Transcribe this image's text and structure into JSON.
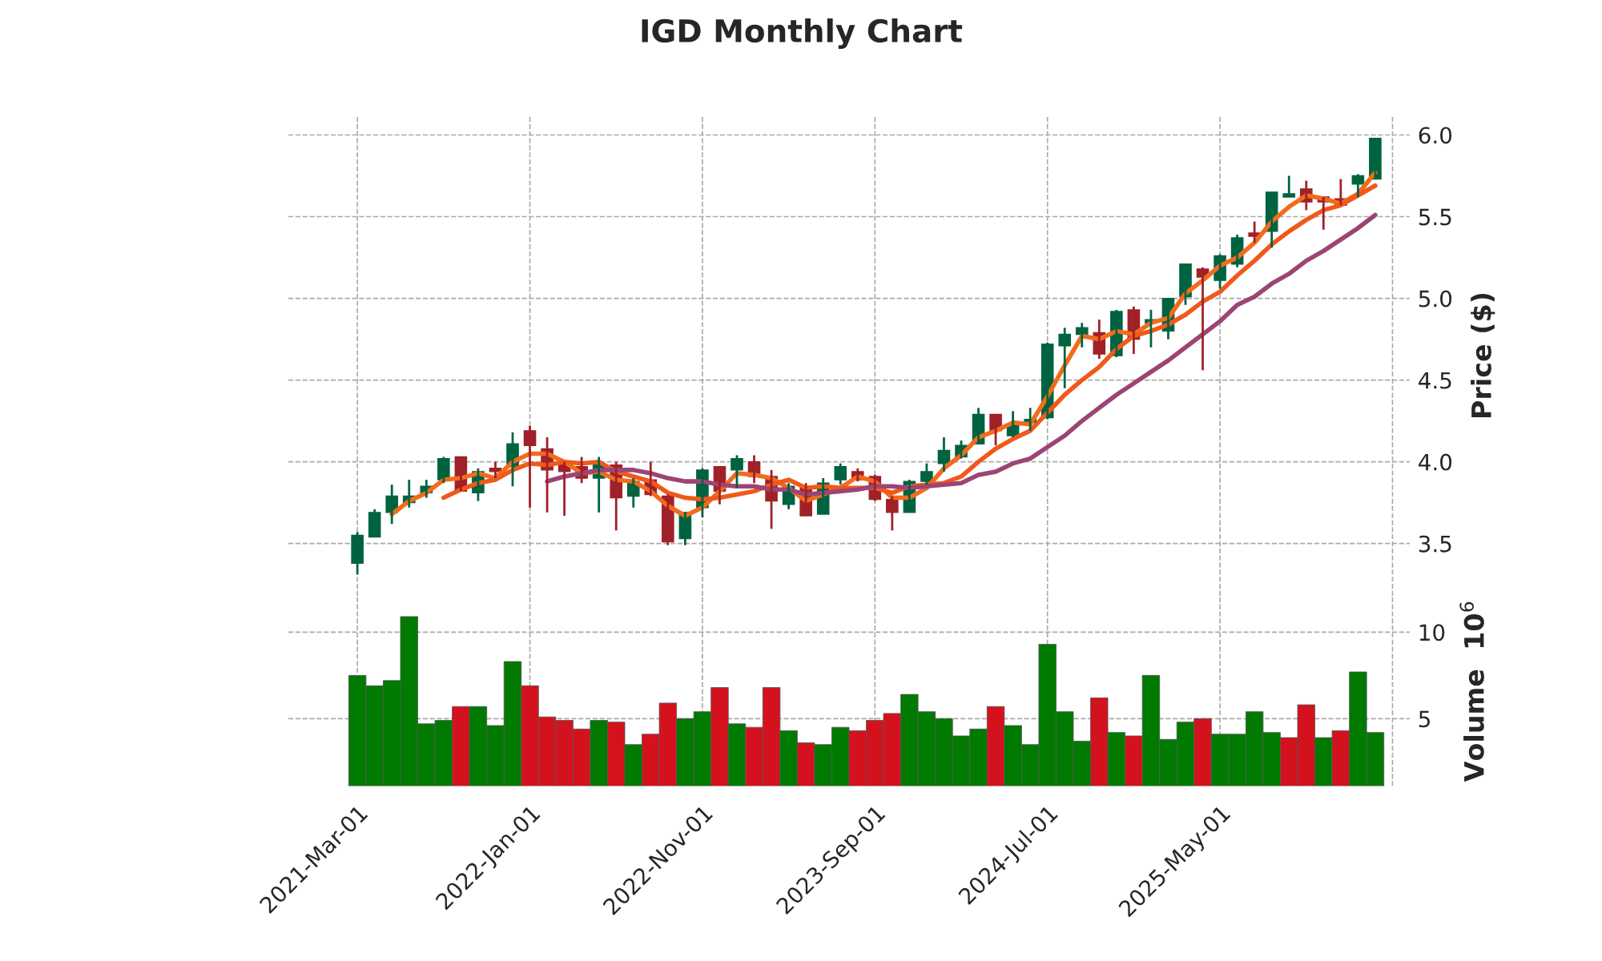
{
  "chart_data": [
    {
      "type": "candlestick",
      "title": "IGD Monthly Chart",
      "ylabel": "Price ($)",
      "x": [
        "2021-03",
        "2021-04",
        "2021-05",
        "2021-06",
        "2021-07",
        "2021-08",
        "2021-09",
        "2021-10",
        "2021-11",
        "2021-12",
        "2022-01",
        "2022-02",
        "2022-03",
        "2022-04",
        "2022-05",
        "2022-06",
        "2022-07",
        "2022-08",
        "2022-09",
        "2022-10",
        "2022-11",
        "2022-12",
        "2023-01",
        "2023-02",
        "2023-03",
        "2023-04",
        "2023-05",
        "2023-06",
        "2023-07",
        "2023-08",
        "2023-09",
        "2023-10",
        "2023-11",
        "2023-12",
        "2024-01",
        "2024-02",
        "2024-03",
        "2024-04",
        "2024-05",
        "2024-06",
        "2024-07",
        "2024-08",
        "2024-09",
        "2024-10",
        "2024-11",
        "2024-12",
        "2025-01",
        "2025-02",
        "2025-03",
        "2025-04",
        "2025-05",
        "2025-06",
        "2025-07",
        "2025-08",
        "2025-09",
        "2025-10",
        "2025-11",
        "2025-12",
        "2026-01",
        "2026-02"
      ],
      "ohlc": [
        [
          3.38,
          3.57,
          3.31,
          3.55
        ],
        [
          3.54,
          3.71,
          3.54,
          3.69
        ],
        [
          3.69,
          3.86,
          3.62,
          3.79
        ],
        [
          3.75,
          3.89,
          3.72,
          3.79
        ],
        [
          3.81,
          3.89,
          3.78,
          3.85
        ],
        [
          3.89,
          4.03,
          3.87,
          4.02
        ],
        [
          4.03,
          4.03,
          3.82,
          3.82
        ],
        [
          3.81,
          3.96,
          3.76,
          3.94
        ],
        [
          3.96,
          4.0,
          3.9,
          3.94
        ],
        [
          3.97,
          4.18,
          3.85,
          4.11
        ],
        [
          4.19,
          4.22,
          3.72,
          4.1
        ],
        [
          4.08,
          4.15,
          3.69,
          3.95
        ],
        [
          3.98,
          4.0,
          3.67,
          3.94
        ],
        [
          3.97,
          4.03,
          3.87,
          3.9
        ],
        [
          3.9,
          4.03,
          3.69,
          3.98
        ],
        [
          3.98,
          4.0,
          3.58,
          3.78
        ],
        [
          3.79,
          3.9,
          3.72,
          3.88
        ],
        [
          3.89,
          4.0,
          3.79,
          3.8
        ],
        [
          3.79,
          3.8,
          3.49,
          3.51
        ],
        [
          3.53,
          3.69,
          3.49,
          3.69
        ],
        [
          3.72,
          3.96,
          3.66,
          3.95
        ],
        [
          3.97,
          3.97,
          3.74,
          3.82
        ],
        [
          3.95,
          4.04,
          3.84,
          4.02
        ],
        [
          4.0,
          4.04,
          3.87,
          3.91
        ],
        [
          3.91,
          3.95,
          3.59,
          3.76
        ],
        [
          3.74,
          3.87,
          3.71,
          3.85
        ],
        [
          3.85,
          3.87,
          3.67,
          3.67
        ],
        [
          3.68,
          3.9,
          3.68,
          3.87
        ],
        [
          3.89,
          3.99,
          3.86,
          3.97
        ],
        [
          3.94,
          3.96,
          3.88,
          3.89
        ],
        [
          3.91,
          3.92,
          3.76,
          3.77
        ],
        [
          3.77,
          3.79,
          3.58,
          3.69
        ],
        [
          3.69,
          3.89,
          3.69,
          3.88
        ],
        [
          3.88,
          3.99,
          3.86,
          3.94
        ],
        [
          3.99,
          4.15,
          3.94,
          4.07
        ],
        [
          4.03,
          4.13,
          4.02,
          4.1
        ],
        [
          4.11,
          4.33,
          4.11,
          4.29
        ],
        [
          4.29,
          4.29,
          4.1,
          4.19
        ],
        [
          4.16,
          4.31,
          4.15,
          4.23
        ],
        [
          4.24,
          4.33,
          4.19,
          4.26
        ],
        [
          4.27,
          4.73,
          4.26,
          4.72
        ],
        [
          4.71,
          4.82,
          4.45,
          4.78
        ],
        [
          4.78,
          4.85,
          4.7,
          4.82
        ],
        [
          4.79,
          4.87,
          4.63,
          4.66
        ],
        [
          4.65,
          4.93,
          4.64,
          4.92
        ],
        [
          4.93,
          4.95,
          4.66,
          4.75
        ],
        [
          4.85,
          4.93,
          4.7,
          4.87
        ],
        [
          4.8,
          5.0,
          4.75,
          5.0
        ],
        [
          5.01,
          5.21,
          4.96,
          5.21
        ],
        [
          5.18,
          5.19,
          4.56,
          5.13
        ],
        [
          5.11,
          5.27,
          5.06,
          5.26
        ],
        [
          5.21,
          5.39,
          5.19,
          5.37
        ],
        [
          5.4,
          5.47,
          5.34,
          5.38
        ],
        [
          5.41,
          5.65,
          5.31,
          5.65
        ],
        [
          5.62,
          5.75,
          5.62,
          5.64
        ],
        [
          5.67,
          5.72,
          5.54,
          5.59
        ],
        [
          5.62,
          5.62,
          5.42,
          5.59
        ],
        [
          5.61,
          5.73,
          5.57,
          5.57
        ],
        [
          5.7,
          5.76,
          5.62,
          5.75
        ],
        [
          5.73,
          5.98,
          5.73,
          5.98
        ]
      ],
      "colors": [
        "#006340",
        "#006340",
        "#006340",
        "#006340",
        "#006340",
        "#006340",
        "#a02128",
        "#006340",
        "#a02128",
        "#006340",
        "#a02128",
        "#a02128",
        "#a02128",
        "#a02128",
        "#006340",
        "#a02128",
        "#006340",
        "#a02128",
        "#a02128",
        "#006340",
        "#006340",
        "#a02128",
        "#006340",
        "#a02128",
        "#a02128",
        "#006340",
        "#a02128",
        "#006340",
        "#006340",
        "#a02128",
        "#a02128",
        "#a02128",
        "#006340",
        "#006340",
        "#006340",
        "#006340",
        "#006340",
        "#a02128",
        "#006340",
        "#006340",
        "#006340",
        "#006340",
        "#006340",
        "#a02128",
        "#006340",
        "#a02128",
        "#006340",
        "#006340",
        "#006340",
        "#a02128",
        "#006340",
        "#006340",
        "#a02128",
        "#006340",
        "#006340",
        "#a02128",
        "#a02128",
        "#a02128",
        "#006340",
        "#006340"
      ],
      "series": [
        {
          "type": "line",
          "color": "#f26b1d",
          "x": [
            "2021-05",
            "2021-06",
            "2021-07",
            "2021-08",
            "2021-09",
            "2021-10",
            "2021-11",
            "2021-12",
            "2022-01",
            "2022-02",
            "2022-03",
            "2022-04",
            "2022-05",
            "2022-06",
            "2022-07",
            "2022-08",
            "2022-09",
            "2022-10",
            "2022-11",
            "2022-12",
            "2023-01",
            "2023-02",
            "2023-03",
            "2023-04",
            "2023-05",
            "2023-06",
            "2023-07",
            "2023-08",
            "2023-09",
            "2023-10",
            "2023-11",
            "2023-12",
            "2024-01",
            "2024-02",
            "2024-03",
            "2024-04",
            "2024-05",
            "2024-06",
            "2024-07",
            "2024-08",
            "2024-09",
            "2024-10",
            "2024-11",
            "2024-12",
            "2025-01",
            "2025-02",
            "2025-03",
            "2025-04",
            "2025-05",
            "2025-06",
            "2025-07",
            "2025-08",
            "2025-09",
            "2025-10",
            "2025-11",
            "2025-12",
            "2026-01",
            "2026-02"
          ],
          "values": [
            3.68,
            3.76,
            3.81,
            3.89,
            3.9,
            3.93,
            3.9,
            4.0,
            4.05,
            4.05,
            4.0,
            3.93,
            3.94,
            3.89,
            3.88,
            3.82,
            3.73,
            3.67,
            3.72,
            3.82,
            3.93,
            3.92,
            3.9,
            3.84,
            3.76,
            3.8,
            3.84,
            3.91,
            3.88,
            3.78,
            3.78,
            3.84,
            3.96,
            4.04,
            4.15,
            4.19,
            4.24,
            4.23,
            4.4,
            4.59,
            4.77,
            4.75,
            4.8,
            4.78,
            4.85,
            4.88,
            5.03,
            5.11,
            5.2,
            5.25,
            5.34,
            5.47,
            5.56,
            5.63,
            5.61,
            5.58,
            5.64,
            5.77
          ]
        },
        {
          "type": "line",
          "color": "#f0591a",
          "x": [
            "2021-08",
            "2021-09",
            "2021-10",
            "2021-11",
            "2021-12",
            "2022-01",
            "2022-02",
            "2022-03",
            "2022-04",
            "2022-05",
            "2022-06",
            "2022-07",
            "2022-08",
            "2022-09",
            "2022-10",
            "2022-11",
            "2022-12",
            "2023-01",
            "2023-02",
            "2023-03",
            "2023-04",
            "2023-05",
            "2023-06",
            "2023-07",
            "2023-08",
            "2023-09",
            "2023-10",
            "2023-11",
            "2023-12",
            "2024-01",
            "2024-02",
            "2024-03",
            "2024-04",
            "2024-05",
            "2024-06",
            "2024-07",
            "2024-08",
            "2024-09",
            "2024-10",
            "2024-11",
            "2024-12",
            "2025-01",
            "2025-02",
            "2025-03",
            "2025-04",
            "2025-05",
            "2025-06",
            "2025-07",
            "2025-08",
            "2025-09",
            "2025-10",
            "2025-11",
            "2025-12",
            "2026-01",
            "2026-02"
          ],
          "values": [
            3.78,
            3.83,
            3.87,
            3.89,
            3.95,
            3.99,
            3.98,
            4.0,
            3.99,
            4.0,
            3.94,
            3.91,
            3.88,
            3.81,
            3.78,
            3.77,
            3.78,
            3.8,
            3.82,
            3.86,
            3.89,
            3.84,
            3.85,
            3.84,
            3.84,
            3.84,
            3.81,
            3.85,
            3.86,
            3.87,
            3.91,
            4.0,
            4.08,
            4.14,
            4.19,
            4.3,
            4.41,
            4.5,
            4.58,
            4.69,
            4.77,
            4.8,
            4.84,
            4.9,
            4.98,
            5.04,
            5.14,
            5.23,
            5.33,
            5.41,
            5.48,
            5.54,
            5.57,
            5.63,
            5.69
          ]
        },
        {
          "type": "line",
          "color": "#9c4575",
          "x": [
            "2022-02",
            "2022-03",
            "2022-04",
            "2022-05",
            "2022-06",
            "2022-07",
            "2022-08",
            "2022-09",
            "2022-10",
            "2022-11",
            "2022-12",
            "2023-01",
            "2023-02",
            "2023-03",
            "2023-04",
            "2023-05",
            "2023-06",
            "2023-07",
            "2023-08",
            "2023-09",
            "2023-10",
            "2023-11",
            "2023-12",
            "2024-01",
            "2024-02",
            "2024-03",
            "2024-04",
            "2024-05",
            "2024-06",
            "2024-07",
            "2024-08",
            "2024-09",
            "2024-10",
            "2024-11",
            "2024-12",
            "2025-01",
            "2025-02",
            "2025-03",
            "2025-04",
            "2025-05",
            "2025-06",
            "2025-07",
            "2025-08",
            "2025-09",
            "2025-10",
            "2025-11",
            "2025-12",
            "2026-01",
            "2026-02"
          ],
          "values": [
            3.88,
            3.91,
            3.93,
            3.95,
            3.95,
            3.95,
            3.93,
            3.9,
            3.88,
            3.88,
            3.86,
            3.85,
            3.85,
            3.83,
            3.83,
            3.8,
            3.81,
            3.82,
            3.83,
            3.85,
            3.85,
            3.84,
            3.85,
            3.86,
            3.87,
            3.92,
            3.94,
            3.99,
            4.02,
            4.09,
            4.16,
            4.25,
            4.33,
            4.41,
            4.48,
            4.55,
            4.62,
            4.7,
            4.78,
            4.86,
            4.96,
            5.01,
            5.09,
            5.15,
            5.23,
            5.29,
            5.36,
            5.43,
            5.51
          ]
        }
      ],
      "xlim": [
        "2020-11",
        "2026-04"
      ],
      "xticks": [
        {
          "value": "2021-03",
          "label": null
        },
        {
          "value": "2022-01",
          "label": null
        },
        {
          "value": "2022-11",
          "label": null
        },
        {
          "value": "2023-09",
          "label": null
        },
        {
          "value": "2024-07",
          "label": null
        },
        {
          "value": "2025-05",
          "label": null
        },
        {
          "value": "2026-03",
          "label": null
        }
      ],
      "ylim": [
        3.18,
        6.12
      ],
      "yticks": [
        3.5,
        {
          "value": 4,
          "label": "4.0"
        },
        4.5,
        {
          "value": 5,
          "label": "5.0"
        },
        5.5,
        {
          "value": 6,
          "label": "6.0"
        }
      ],
      "grid": true,
      "tick_labels": "y"
    },
    {
      "type": "bar",
      "ylabel": "Volume  10$^{6}$",
      "x": [
        "2021-03",
        "2021-04",
        "2021-05",
        "2021-06",
        "2021-07",
        "2021-08",
        "2021-09",
        "2021-10",
        "2021-11",
        "2021-12",
        "2022-01",
        "2022-02",
        "2022-03",
        "2022-04",
        "2022-05",
        "2022-06",
        "2022-07",
        "2022-08",
        "2022-09",
        "2022-10",
        "2022-11",
        "2022-12",
        "2023-01",
        "2023-02",
        "2023-03",
        "2023-04",
        "2023-05",
        "2023-06",
        "2023-07",
        "2023-08",
        "2023-09",
        "2023-10",
        "2023-11",
        "2023-12",
        "2024-01",
        "2024-02",
        "2024-03",
        "2024-04",
        "2024-05",
        "2024-06",
        "2024-07",
        "2024-08",
        "2024-09",
        "2024-10",
        "2024-11",
        "2024-12",
        "2025-01",
        "2025-02",
        "2025-03",
        "2025-04",
        "2025-05",
        "2025-06",
        "2025-07",
        "2025-08",
        "2025-09",
        "2025-10",
        "2025-11",
        "2025-12",
        "2026-01",
        "2026-02"
      ],
      "values": [
        7.5,
        6.9,
        7.2,
        10.9,
        4.7,
        4.9,
        5.7,
        5.7,
        4.6,
        8.3,
        6.9,
        5.1,
        4.9,
        4.4,
        4.9,
        4.8,
        3.5,
        4.1,
        5.9,
        5.0,
        5.4,
        6.8,
        4.7,
        4.5,
        6.8,
        4.3,
        3.6,
        3.5,
        4.5,
        4.3,
        4.9,
        5.3,
        6.4,
        5.4,
        5.0,
        4.0,
        4.4,
        5.7,
        4.6,
        3.5,
        9.3,
        5.4,
        3.7,
        6.2,
        4.2,
        4.0,
        7.5,
        3.8,
        4.8,
        5.0,
        4.1,
        4.1,
        5.4,
        4.2,
        3.9,
        5.8,
        3.9,
        4.3,
        7.7,
        4.2
      ],
      "colors": [
        "#007a00",
        "#007a00",
        "#007a00",
        "#007a00",
        "#007a00",
        "#007a00",
        "#d4121e",
        "#007a00",
        "#007a00",
        "#007a00",
        "#d4121e",
        "#d4121e",
        "#d4121e",
        "#d4121e",
        "#007a00",
        "#d4121e",
        "#007a00",
        "#d4121e",
        "#d4121e",
        "#007a00",
        "#007a00",
        "#d4121e",
        "#007a00",
        "#d4121e",
        "#d4121e",
        "#007a00",
        "#d4121e",
        "#007a00",
        "#007a00",
        "#d4121e",
        "#d4121e",
        "#d4121e",
        "#007a00",
        "#007a00",
        "#007a00",
        "#007a00",
        "#007a00",
        "#d4121e",
        "#007a00",
        "#007a00",
        "#007a00",
        "#007a00",
        "#007a00",
        "#d4121e",
        "#007a00",
        "#d4121e",
        "#007a00",
        "#007a00",
        "#007a00",
        "#d4121e",
        "#007a00",
        "#007a00",
        "#007a00",
        "#007a00",
        "#d4121e",
        "#d4121e",
        "#007a00",
        "#d4121e",
        "#007a00",
        "#007a00"
      ],
      "xlim": [
        "2020-11",
        "2026-04"
      ],
      "xticks": [
        {
          "value": "2021-03",
          "label": "2021-Mar-01"
        },
        {
          "value": "2022-01",
          "label": "2022-Jan-01"
        },
        {
          "value": "2022-11",
          "label": "2022-Nov-01"
        },
        {
          "value": "2023-09",
          "label": "2023-Sep-01"
        },
        {
          "value": "2024-07",
          "label": "2024-Jul-01"
        },
        {
          "value": "2025-05",
          "label": "2025-May-01"
        },
        {
          "value": "2026-03",
          "label": null
        }
      ],
      "ylim": [
        1.1,
        12.1
      ],
      "yticks": [
        5,
        10
      ],
      "grid": true
    }
  ]
}
